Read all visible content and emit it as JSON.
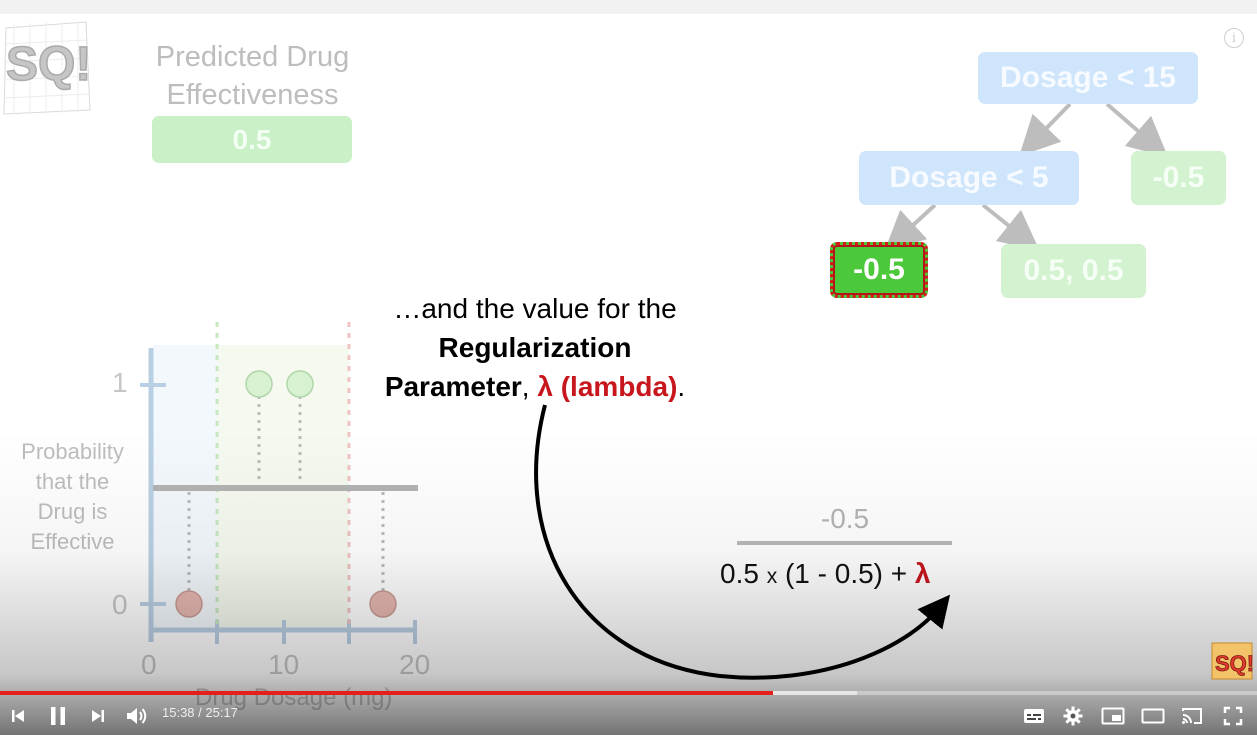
{
  "slide": {
    "predicted_title_line1": "Predicted Drug",
    "predicted_title_line2": "Effectiveness",
    "predicted_value": "0.5",
    "tree": {
      "root": "Dosage < 15",
      "inner": "Dosage < 5",
      "right_leaf": "-0.5",
      "highlighted_leaf": "-0.5",
      "middle_leaf": "0.5, 0.5"
    },
    "narration": {
      "line1": "…and the value for the",
      "line2": "Regularization",
      "line3_bold": "Parameter",
      "line3_comma": ", ",
      "line3_red": "λ (lambda)",
      "line3_end": "."
    },
    "fraction": {
      "numerator": "-0.5",
      "den_a": "0.5 ",
      "den_times": "x",
      "den_b": " (1 - 0.5) + ",
      "den_lambda": "λ"
    },
    "plot": {
      "ylabel_lines": [
        "Probability",
        "that the",
        "Drug is",
        "Effective"
      ],
      "y_ticks": [
        "1",
        "0"
      ],
      "x_ticks": [
        "0",
        "10",
        "20"
      ],
      "xlabel": "Drug Dosage (mg)"
    }
  },
  "player": {
    "current_time": "15:38",
    "duration": "25:17",
    "time_display": "15:38 / 25:17",
    "progress_fraction": 0.615,
    "buffered_fraction": 0.682,
    "accent_color": "#e3201b",
    "icons": [
      "previous-icon",
      "pause-icon",
      "next-icon",
      "volume-icon",
      "subtitles-icon",
      "settings-gear-icon",
      "miniplayer-icon",
      "theater-mode-icon",
      "cast-icon",
      "fullscreen-icon",
      "info-icon"
    ]
  },
  "logo_text": "SQ!"
}
